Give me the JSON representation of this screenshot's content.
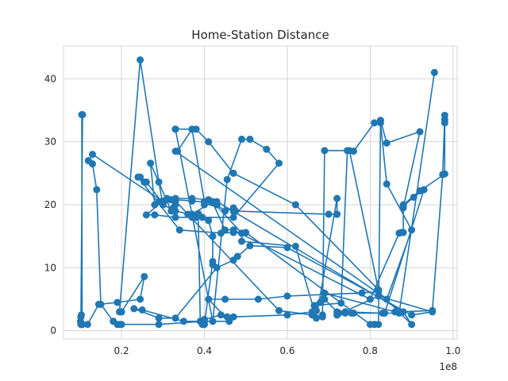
{
  "chart_data": {
    "type": "line",
    "title": "Home-Station Distance",
    "xlabel": "",
    "ylabel": "",
    "x_offset_label": "1e8",
    "xlim": [
      0.06,
      1.01
    ],
    "ylim": [
      -1.3,
      45.2
    ],
    "xticks": [
      0.2,
      0.4,
      0.6,
      0.8,
      1.0
    ],
    "xtick_labels": [
      "0.2",
      "0.4",
      "0.6",
      "0.8",
      "1.0"
    ],
    "yticks": [
      0,
      10,
      20,
      30,
      40
    ],
    "ytick_labels": [
      "0",
      "10",
      "20",
      "30",
      "40"
    ],
    "grid": true,
    "line_color": "#1f77b4",
    "series": [
      {
        "x": [
          0.105,
          0.102,
          0.101,
          0.102,
          0.103,
          0.105,
          0.104,
          0.105,
          0.106,
          0.102,
          0.103,
          0.105,
          0.118,
          0.145,
          0.19,
          0.245,
          0.255,
          0.2,
          0.195,
          0.245,
          0.29,
          0.3,
          0.33,
          0.395,
          0.47,
          0.58,
          0.55,
          0.51,
          0.49,
          0.455,
          0.42,
          0.33,
          0.33,
          0.38,
          0.41,
          0.47,
          0.62,
          0.82,
          0.75,
          0.76,
          0.81,
          0.825,
          0.84,
          0.92,
          0.88,
          0.88,
          0.92,
          0.98,
          0.98,
          0.98,
          0.98,
          0.975,
          0.95,
          0.86,
          0.69,
          0.665,
          0.73,
          0.745,
          0.69,
          0.685,
          0.685,
          0.66,
          0.58,
          0.33,
          0.3,
          0.26,
          0.255,
          0.245,
          0.24,
          0.34,
          0.44,
          0.47,
          0.49,
          0.49,
          0.5,
          0.8,
          0.81,
          0.81,
          0.82,
          0.825,
          0.84,
          0.9,
          0.84,
          0.33,
          0.335,
          0.37,
          0.4,
          0.4,
          0.43,
          0.45,
          0.47,
          0.47,
          0.475,
          0.7,
          0.72,
          0.72,
          0.72,
          0.67,
          0.62,
          0.49,
          0.49,
          0.42,
          0.37,
          0.36,
          0.38,
          0.41,
          0.42,
          0.42,
          0.42,
          0.4,
          0.395,
          0.395,
          0.39,
          0.385,
          0.37,
          0.33,
          0.28,
          0.26,
          0.3,
          0.32,
          0.33,
          0.33,
          0.325,
          0.32,
          0.27,
          0.28,
          0.3,
          0.33,
          0.37,
          0.42,
          0.45,
          0.47,
          0.8,
          0.87,
          0.875,
          0.88,
          0.88,
          0.905,
          0.93,
          0.835,
          0.83,
          0.74,
          0.725,
          0.72,
          0.72,
          0.82,
          0.95,
          0.9,
          0.6,
          0.51,
          0.48,
          0.47,
          0.43,
          0.33,
          0.29,
          0.23,
          0.25,
          0.35,
          0.46,
          0.41,
          0.45,
          0.53,
          0.6,
          0.78,
          0.82,
          0.9,
          0.88,
          0.43,
          0.41,
          0.37,
          0.33,
          0.31,
          0.295,
          0.29,
          0.3,
          0.13,
          0.12,
          0.13,
          0.14,
          0.15,
          0.18,
          0.19,
          0.195,
          0.2,
          0.29,
          0.4,
          0.4,
          0.44,
          0.455,
          0.47,
          0.6,
          0.66,
          0.67,
          0.68,
          0.69,
          0.72,
          0.74,
          0.755,
          0.76,
          0.87,
          0.955
        ],
        "y": [
          1.0,
          1.2,
          1.5,
          2.2,
          2.5,
          1.0,
          34.3,
          34.3,
          34.3,
          1.0,
          1.0,
          1.0,
          1.0,
          4.2,
          4.5,
          5.0,
          8.6,
          3.0,
          3.0,
          43.0,
          23.6,
          20.0,
          19.0,
          18.0,
          18.0,
          26.6,
          28.8,
          30.4,
          30.4,
          24.0,
          1.5,
          32.0,
          32.0,
          32.0,
          30.0,
          25.0,
          20.0,
          6.5,
          28.6,
          28.5,
          33.0,
          33.4,
          29.8,
          31.6,
          19.5,
          20.0,
          22.2,
          24.9,
          33.0,
          33.5,
          34.2,
          24.8,
          3.2,
          3.0,
          6.0,
          4.0,
          4.4,
          28.6,
          28.6,
          2.5,
          2.2,
          2.5,
          3.2,
          20.6,
          20.2,
          23.6,
          23.6,
          24.4,
          24.4,
          16.0,
          15.5,
          15.6,
          15.5,
          15.5,
          15.6,
          1.0,
          1.0,
          1.0,
          1.0,
          33.0,
          23.3,
          16.0,
          5.0,
          28.5,
          28.5,
          32.0,
          20.5,
          20.0,
          20.0,
          19.0,
          19.5,
          19.0,
          19.0,
          18.5,
          18.5,
          18.5,
          21.0,
          2.0,
          13.4,
          14.2,
          15.5,
          20.5,
          18.5,
          18.5,
          18.0,
          17.5,
          15.0,
          10.5,
          11.0,
          1.0,
          1.0,
          1.2,
          1.5,
          18.6,
          18.0,
          18.0,
          18.4,
          18.4,
          20.6,
          20.8,
          20.6,
          20.0,
          19.5,
          19.0,
          26.6,
          20.0,
          20.4,
          20.8,
          20.6,
          20.3,
          16.0,
          16.0,
          5.0,
          15.5,
          15.6,
          15.6,
          19.8,
          21.2,
          22.4,
          2.8,
          2.8,
          3.0,
          2.8,
          2.5,
          2.5,
          5.5,
          3.0,
          2.5,
          13.2,
          13.5,
          11.8,
          11.2,
          10.0,
          2.0,
          2.0,
          3.5,
          3.3,
          1.5,
          1.5,
          5.0,
          5.0,
          5.0,
          5.5,
          6.0,
          6.2,
          1.0,
          3.0,
          20.5,
          20.8,
          21.0,
          21.0,
          21.0,
          20.5,
          20.5,
          20.5,
          28.0,
          27.0,
          26.5,
          22.4,
          4.2,
          1.5,
          1.0,
          1.0,
          1.0,
          1.0,
          1.5,
          1.8,
          2.5,
          2.2,
          2.2,
          2.5,
          3.0,
          3.2,
          4.5,
          5.0,
          3.0,
          2.8,
          2.8,
          2.8,
          2.8,
          41.0
        ]
      }
    ]
  }
}
